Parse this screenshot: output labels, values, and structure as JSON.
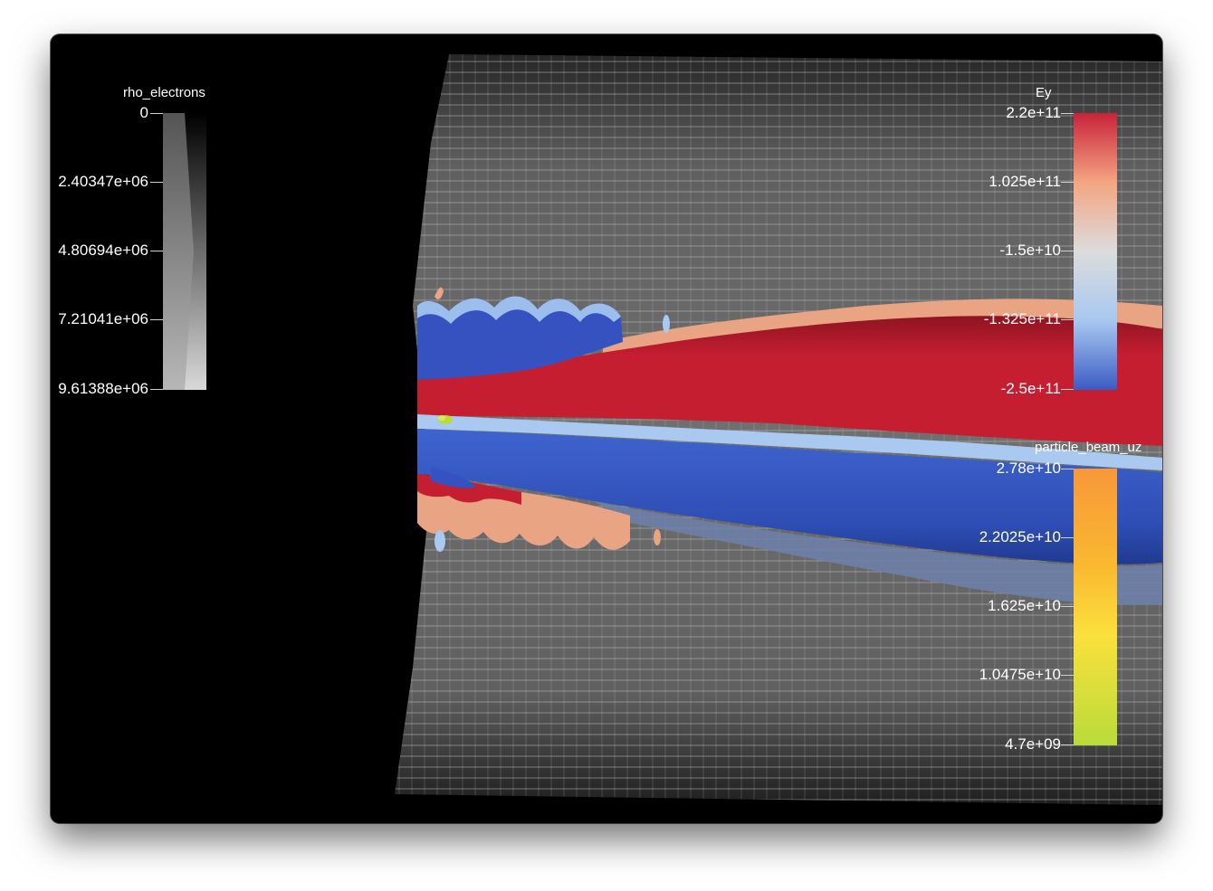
{
  "colorbars": {
    "rho": {
      "title": "rho_electrons",
      "ticks": [
        "0",
        "2.40347e+06",
        "4.80694e+06",
        "7.21041e+06",
        "9.61388e+06"
      ]
    },
    "ey": {
      "title": "Ey",
      "ticks": [
        "2.2e+11",
        "1.025e+11",
        "-1.5e+10",
        "-1.325e+11",
        "-2.5e+11"
      ],
      "colors": [
        "#c8223a",
        "#f4a582",
        "#dcdcdc",
        "#a8c8f0",
        "#3b5bc4"
      ]
    },
    "uz": {
      "title": "particle_beam_uz",
      "ticks": [
        "2.78e+10",
        "2.2025e+10",
        "1.625e+10",
        "1.0475e+10",
        "4.7e+09"
      ],
      "colors": [
        "#f7983a",
        "#f9b830",
        "#fbe03c",
        "#b9dc3a"
      ]
    }
  },
  "scene": {
    "background": "#000000",
    "volume_color": "#8a8a8a",
    "ey_positive": "#c41e30",
    "ey_negative": "#3552c0",
    "ey_light_pos": "#e9a483",
    "ey_light_neg": "#a9c9f1",
    "beam": "#b9dc3a"
  }
}
